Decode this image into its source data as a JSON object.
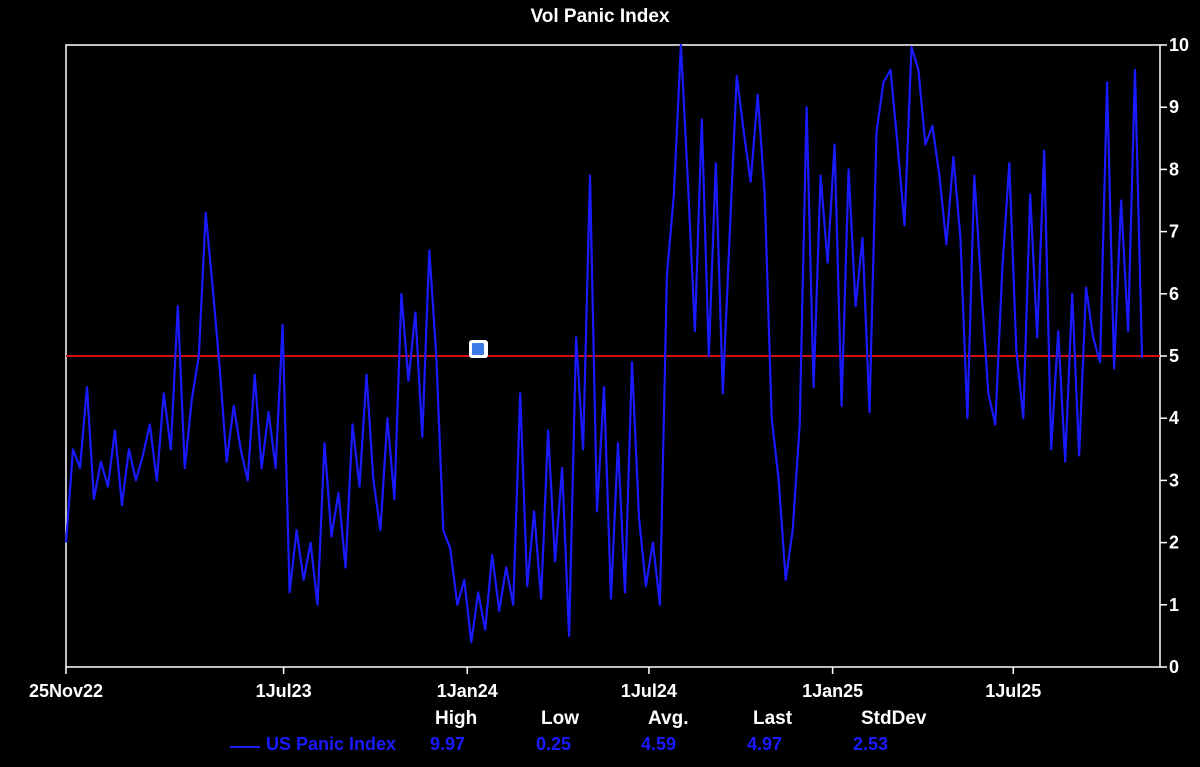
{
  "chart_data": {
    "type": "line",
    "title": "Vol Panic Index",
    "xlabel": "",
    "ylabel": "",
    "ylim": [
      0,
      10
    ],
    "y_ticks": [
      "0",
      "1",
      "2",
      "3",
      "4",
      "5",
      "6",
      "7",
      "8",
      "9",
      "10"
    ],
    "x_tick_labels": [
      "25Nov22",
      "1Jul23",
      "1Jan24",
      "1Jul24",
      "1Jan25",
      "1Jul25"
    ],
    "x_tick_dates": [
      "2022-11-25",
      "2023-07-01",
      "2024-01-01",
      "2024-07-01",
      "2025-01-01",
      "2025-07-01"
    ],
    "x_range": [
      "2022-11-25",
      "2025-11-25"
    ],
    "reference_line": {
      "y": 5,
      "color": "#d01010"
    },
    "grid": false,
    "series": [
      {
        "name": "US Panic Index",
        "color": "#1a1aff",
        "points": [
          [
            "2022-11-25",
            2.0
          ],
          [
            "2022-12-02",
            3.5
          ],
          [
            "2022-12-09",
            3.2
          ],
          [
            "2022-12-16",
            4.5
          ],
          [
            "2022-12-23",
            2.7
          ],
          [
            "2022-12-30",
            3.3
          ],
          [
            "2023-01-06",
            2.9
          ],
          [
            "2023-01-13",
            3.8
          ],
          [
            "2023-01-20",
            2.6
          ],
          [
            "2023-01-27",
            3.5
          ],
          [
            "2023-02-03",
            3.0
          ],
          [
            "2023-02-10",
            3.4
          ],
          [
            "2023-02-17",
            3.9
          ],
          [
            "2023-02-24",
            3.0
          ],
          [
            "2023-03-03",
            4.4
          ],
          [
            "2023-03-10",
            3.5
          ],
          [
            "2023-03-17",
            5.8
          ],
          [
            "2023-03-24",
            3.2
          ],
          [
            "2023-03-31",
            4.3
          ],
          [
            "2023-04-07",
            5.0
          ],
          [
            "2023-04-14",
            7.3
          ],
          [
            "2023-04-21",
            6.1
          ],
          [
            "2023-04-28",
            4.8
          ],
          [
            "2023-05-05",
            3.3
          ],
          [
            "2023-05-12",
            4.2
          ],
          [
            "2023-05-19",
            3.5
          ],
          [
            "2023-05-26",
            3.0
          ],
          [
            "2023-06-02",
            4.7
          ],
          [
            "2023-06-09",
            3.2
          ],
          [
            "2023-06-16",
            4.1
          ],
          [
            "2023-06-23",
            3.2
          ],
          [
            "2023-06-30",
            5.5
          ],
          [
            "2023-07-07",
            1.2
          ],
          [
            "2023-07-14",
            2.2
          ],
          [
            "2023-07-21",
            1.4
          ],
          [
            "2023-07-28",
            2.0
          ],
          [
            "2023-08-04",
            1.0
          ],
          [
            "2023-08-11",
            3.6
          ],
          [
            "2023-08-18",
            2.1
          ],
          [
            "2023-08-25",
            2.8
          ],
          [
            "2023-09-01",
            1.6
          ],
          [
            "2023-09-08",
            3.9
          ],
          [
            "2023-09-15",
            2.9
          ],
          [
            "2023-09-22",
            4.7
          ],
          [
            "2023-09-29",
            3.0
          ],
          [
            "2023-10-06",
            2.2
          ],
          [
            "2023-10-13",
            4.0
          ],
          [
            "2023-10-20",
            2.7
          ],
          [
            "2023-10-27",
            6.0
          ],
          [
            "2023-11-03",
            4.6
          ],
          [
            "2023-11-10",
            5.7
          ],
          [
            "2023-11-17",
            3.7
          ],
          [
            "2023-11-24",
            6.7
          ],
          [
            "2023-12-01",
            5.0
          ],
          [
            "2023-12-08",
            2.2
          ],
          [
            "2023-12-15",
            1.9
          ],
          [
            "2023-12-22",
            1.0
          ],
          [
            "2023-12-29",
            1.4
          ],
          [
            "2024-01-05",
            0.4
          ],
          [
            "2024-01-12",
            1.2
          ],
          [
            "2024-01-19",
            0.6
          ],
          [
            "2024-01-26",
            1.8
          ],
          [
            "2024-02-02",
            0.9
          ],
          [
            "2024-02-09",
            1.6
          ],
          [
            "2024-02-16",
            1.0
          ],
          [
            "2024-02-23",
            4.4
          ],
          [
            "2024-03-01",
            1.3
          ],
          [
            "2024-03-08",
            2.5
          ],
          [
            "2024-03-15",
            1.1
          ],
          [
            "2024-03-22",
            3.8
          ],
          [
            "2024-03-29",
            1.7
          ],
          [
            "2024-04-05",
            3.2
          ],
          [
            "2024-04-12",
            0.5
          ],
          [
            "2024-04-19",
            5.3
          ],
          [
            "2024-04-26",
            3.5
          ],
          [
            "2024-05-03",
            7.9
          ],
          [
            "2024-05-10",
            2.5
          ],
          [
            "2024-05-17",
            4.5
          ],
          [
            "2024-05-24",
            1.1
          ],
          [
            "2024-05-31",
            3.6
          ],
          [
            "2024-06-07",
            1.2
          ],
          [
            "2024-06-14",
            4.9
          ],
          [
            "2024-06-21",
            2.4
          ],
          [
            "2024-06-28",
            1.3
          ],
          [
            "2024-07-05",
            2.0
          ],
          [
            "2024-07-12",
            1.0
          ],
          [
            "2024-07-19",
            6.3
          ],
          [
            "2024-07-26",
            7.6
          ],
          [
            "2024-08-02",
            10.0
          ],
          [
            "2024-08-09",
            7.8
          ],
          [
            "2024-08-16",
            5.4
          ],
          [
            "2024-08-23",
            8.8
          ],
          [
            "2024-08-30",
            5.0
          ],
          [
            "2024-09-06",
            8.1
          ],
          [
            "2024-09-13",
            4.4
          ],
          [
            "2024-09-20",
            7.0
          ],
          [
            "2024-09-27",
            9.5
          ],
          [
            "2024-10-04",
            8.6
          ],
          [
            "2024-10-11",
            7.8
          ],
          [
            "2024-10-18",
            9.2
          ],
          [
            "2024-10-25",
            7.6
          ],
          [
            "2024-11-01",
            4.0
          ],
          [
            "2024-11-08",
            3.0
          ],
          [
            "2024-11-15",
            1.4
          ],
          [
            "2024-11-22",
            2.2
          ],
          [
            "2024-11-29",
            3.9
          ],
          [
            "2024-12-06",
            9.0
          ],
          [
            "2024-12-13",
            4.5
          ],
          [
            "2024-12-20",
            7.9
          ],
          [
            "2024-12-27",
            6.5
          ],
          [
            "2025-01-03",
            8.4
          ],
          [
            "2025-01-10",
            4.2
          ],
          [
            "2025-01-17",
            8.0
          ],
          [
            "2025-01-24",
            5.8
          ],
          [
            "2025-01-31",
            6.9
          ],
          [
            "2025-02-07",
            4.1
          ],
          [
            "2025-02-14",
            8.6
          ],
          [
            "2025-02-21",
            9.4
          ],
          [
            "2025-02-28",
            9.6
          ],
          [
            "2025-03-07",
            8.4
          ],
          [
            "2025-03-14",
            7.1
          ],
          [
            "2025-03-21",
            9.97
          ],
          [
            "2025-03-28",
            9.6
          ],
          [
            "2025-04-04",
            8.4
          ],
          [
            "2025-04-11",
            8.7
          ],
          [
            "2025-04-18",
            7.9
          ],
          [
            "2025-04-25",
            6.8
          ],
          [
            "2025-05-02",
            8.2
          ],
          [
            "2025-05-09",
            6.9
          ],
          [
            "2025-05-16",
            4.0
          ],
          [
            "2025-05-23",
            7.9
          ],
          [
            "2025-05-30",
            6.1
          ],
          [
            "2025-06-06",
            4.4
          ],
          [
            "2025-06-13",
            3.9
          ],
          [
            "2025-06-20",
            6.4
          ],
          [
            "2025-06-27",
            8.1
          ],
          [
            "2025-07-04",
            5.1
          ],
          [
            "2025-07-11",
            4.0
          ],
          [
            "2025-07-18",
            7.6
          ],
          [
            "2025-07-25",
            5.3
          ],
          [
            "2025-08-01",
            8.3
          ],
          [
            "2025-08-08",
            3.5
          ],
          [
            "2025-08-15",
            5.4
          ],
          [
            "2025-08-22",
            3.3
          ],
          [
            "2025-08-29",
            6.0
          ],
          [
            "2025-09-05",
            3.4
          ],
          [
            "2025-09-12",
            6.1
          ],
          [
            "2025-09-19",
            5.3
          ],
          [
            "2025-09-26",
            4.9
          ],
          [
            "2025-10-03",
            9.4
          ],
          [
            "2025-10-10",
            4.8
          ],
          [
            "2025-10-17",
            7.5
          ],
          [
            "2025-10-24",
            5.4
          ],
          [
            "2025-10-31",
            9.6
          ],
          [
            "2025-11-07",
            4.97
          ]
        ]
      }
    ],
    "stats": {
      "headers": [
        "High",
        "Low",
        "Avg.",
        "Last",
        "StdDev"
      ],
      "values": [
        "9.97",
        "0.25",
        "4.59",
        "4.97",
        "2.53"
      ]
    }
  }
}
